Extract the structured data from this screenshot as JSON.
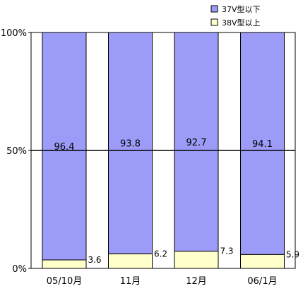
{
  "chart_data": {
    "type": "bar",
    "stacked": true,
    "normalized_percent": true,
    "categories": [
      "05/10月",
      "11月",
      "12月",
      "06/1月"
    ],
    "series": [
      {
        "name": "37V型以下",
        "values": [
          96.4,
          93.8,
          92.7,
          94.1
        ],
        "color": "#9c9cf8"
      },
      {
        "name": "38V型以上",
        "values": [
          3.6,
          6.2,
          7.3,
          5.9
        ],
        "color": "#ffffcc"
      }
    ],
    "y_ticks": [
      "0%",
      "50%",
      "100%"
    ],
    "ylim": [
      0,
      100
    ],
    "legend_position": "top-right",
    "grid": true
  }
}
